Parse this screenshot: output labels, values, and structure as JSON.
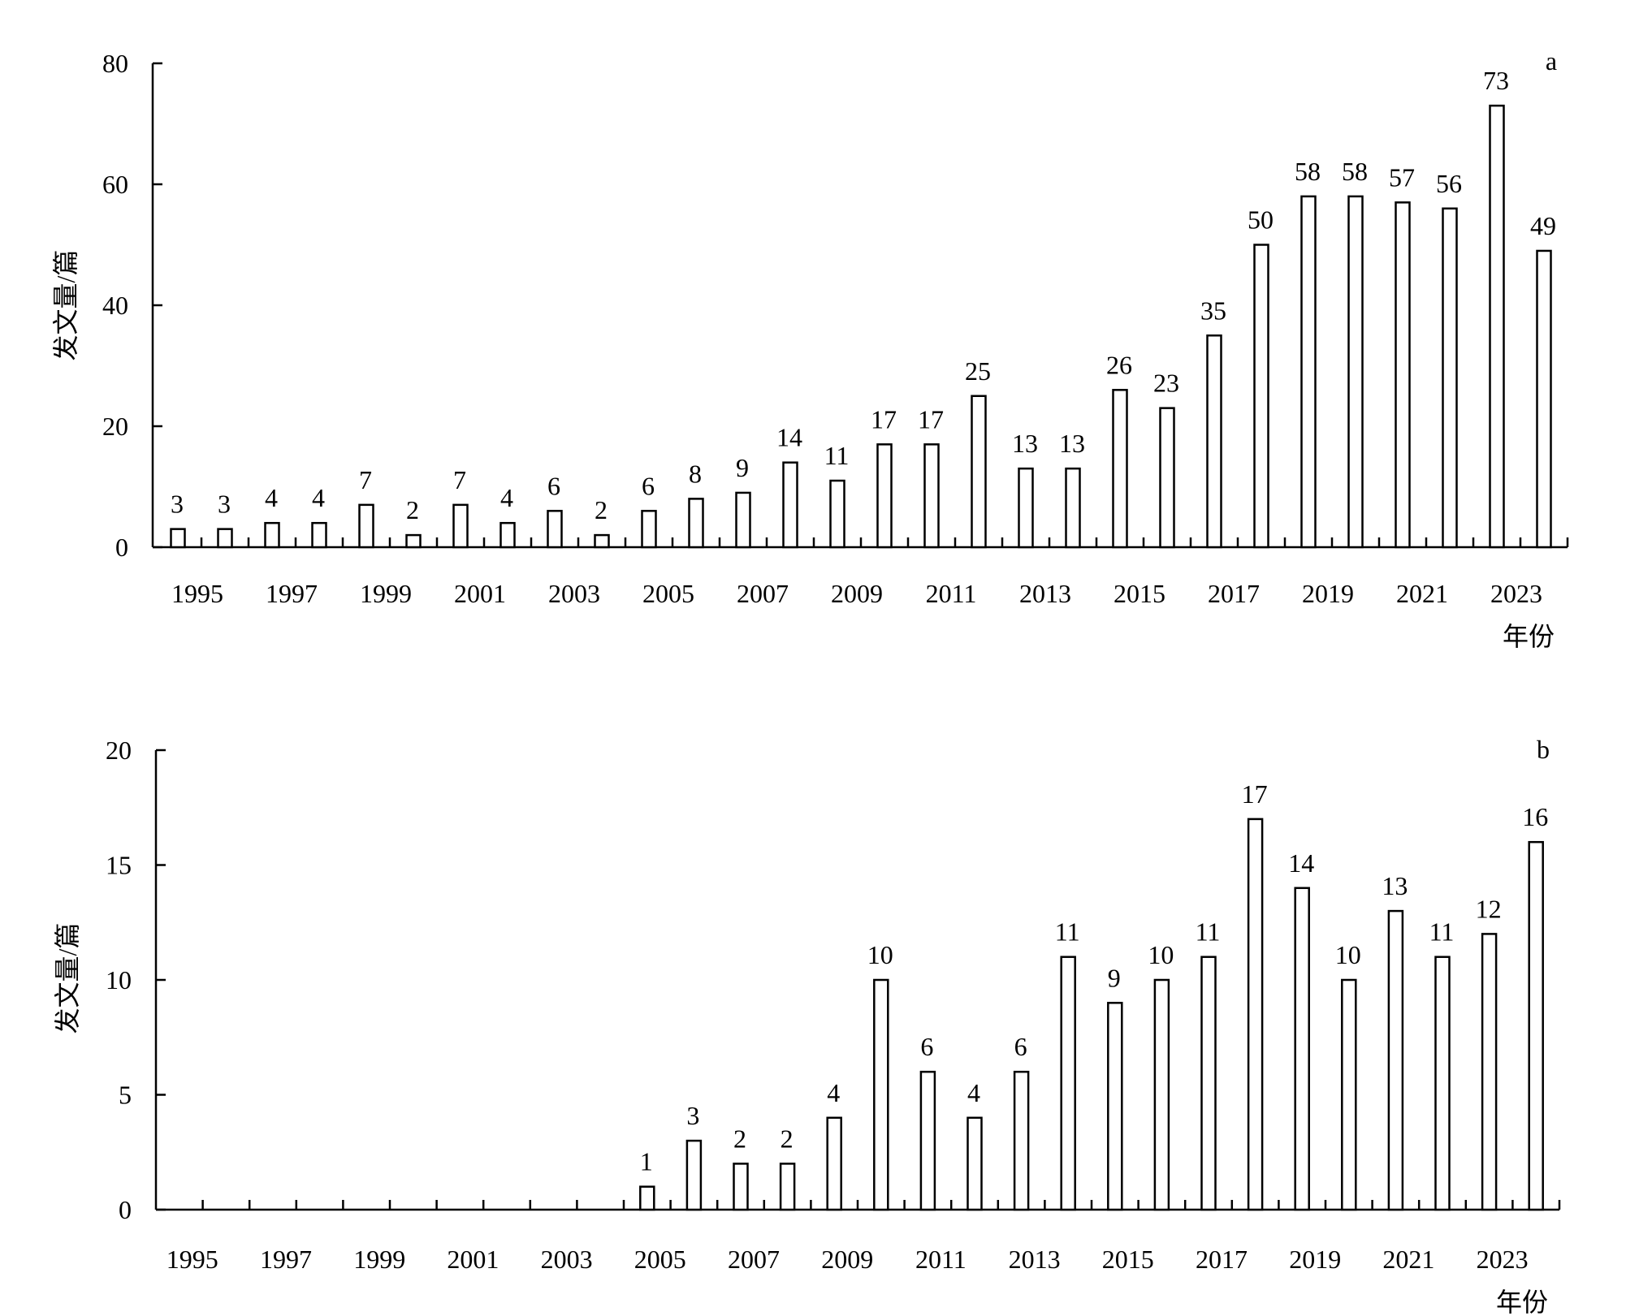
{
  "chart_data": [
    {
      "type": "bar",
      "panel_label": "a",
      "ylabel": "发文量/篇",
      "xlabel": "年份",
      "ylim": [
        0,
        80
      ],
      "yticks": [
        0,
        20,
        40,
        60,
        80
      ],
      "categories": [
        "1995",
        "1996",
        "1997",
        "1998",
        "1999",
        "2000",
        "2001",
        "2002",
        "2003",
        "2004",
        "2005",
        "2006",
        "2007",
        "2008",
        "2009",
        "2010",
        "2011",
        "2012",
        "2013",
        "2014",
        "2015",
        "2016",
        "2017",
        "2018",
        "2019",
        "2020",
        "2021",
        "2022",
        "2023",
        "2024"
      ],
      "xtick_labels": [
        "1995",
        "1997",
        "1999",
        "2001",
        "2003",
        "2005",
        "2007",
        "2009",
        "2011",
        "2013",
        "2015",
        "2017",
        "2019",
        "2021",
        "2023"
      ],
      "values": [
        3,
        3,
        4,
        4,
        7,
        2,
        7,
        4,
        6,
        2,
        6,
        8,
        9,
        14,
        11,
        17,
        17,
        25,
        13,
        13,
        26,
        23,
        35,
        50,
        58,
        58,
        57,
        56,
        73,
        49
      ],
      "grid": false,
      "bar_fill": "#ffffff",
      "bar_stroke": "#000000"
    },
    {
      "type": "bar",
      "panel_label": "b",
      "ylabel": "发文量/篇",
      "xlabel": "年份",
      "ylim": [
        0,
        20
      ],
      "yticks": [
        0,
        5,
        10,
        15,
        20
      ],
      "categories": [
        "1995",
        "1996",
        "1997",
        "1998",
        "1999",
        "2000",
        "2001",
        "2002",
        "2003",
        "2004",
        "2005",
        "2006",
        "2007",
        "2008",
        "2009",
        "2010",
        "2011",
        "2012",
        "2013",
        "2014",
        "2015",
        "2016",
        "2017",
        "2018",
        "2019",
        "2020",
        "2021",
        "2022",
        "2023",
        "2024"
      ],
      "xtick_labels": [
        "1995",
        "1997",
        "1999",
        "2001",
        "2003",
        "2005",
        "2007",
        "2009",
        "2011",
        "2013",
        "2015",
        "2017",
        "2019",
        "2021",
        "2023"
      ],
      "values": [
        0,
        0,
        0,
        0,
        0,
        0,
        0,
        0,
        0,
        0,
        1,
        3,
        2,
        2,
        4,
        10,
        6,
        4,
        6,
        11,
        9,
        10,
        11,
        17,
        14,
        10,
        13,
        11,
        12,
        16
      ],
      "grid": false,
      "bar_fill": "#ffffff",
      "bar_stroke": "#000000"
    }
  ]
}
